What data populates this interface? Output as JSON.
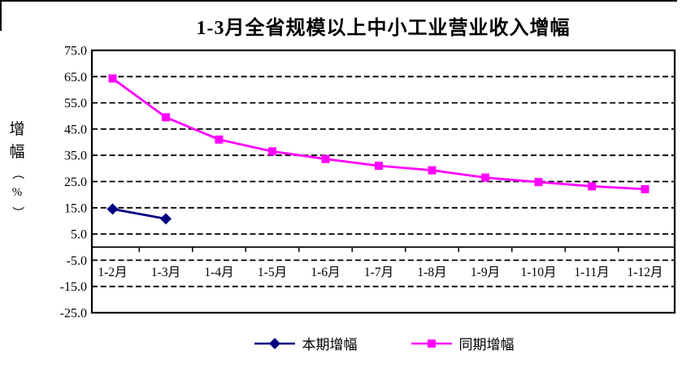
{
  "page": {
    "background": "#FFFFFF",
    "frame_color": "#000000"
  },
  "chart_data": {
    "type": "line",
    "title": "1-3月全省规模以上中小工业营业收入增幅",
    "ylabel": "增幅（%）",
    "xlabel": "",
    "categories": [
      "1-2月",
      "1-3月",
      "1-4月",
      "1-5月",
      "1-6月",
      "1-7月",
      "1-8月",
      "1-9月",
      "1-10月",
      "1-11月",
      "1-12月"
    ],
    "series": [
      {
        "name": "本期增幅",
        "color": "#000080",
        "marker": "diamond",
        "values": [
          14.5,
          10.8,
          null,
          null,
          null,
          null,
          null,
          null,
          null,
          null,
          null
        ]
      },
      {
        "name": "同期增幅",
        "color": "#FF00FF",
        "marker": "square",
        "values": [
          64.3,
          49.5,
          41.0,
          36.5,
          33.6,
          31.0,
          29.3,
          26.5,
          24.8,
          23.2,
          22.1
        ]
      }
    ],
    "ylim": [
      -25,
      75
    ],
    "yticks": [
      "75.0",
      "65.0",
      "55.0",
      "45.0",
      "35.0",
      "25.0",
      "15.0",
      "5.0",
      "-5.0",
      "-15.0",
      "-25.0"
    ],
    "grid": "horizontal-dashed",
    "gridline_color": "#000000",
    "legend_position": "bottom"
  }
}
